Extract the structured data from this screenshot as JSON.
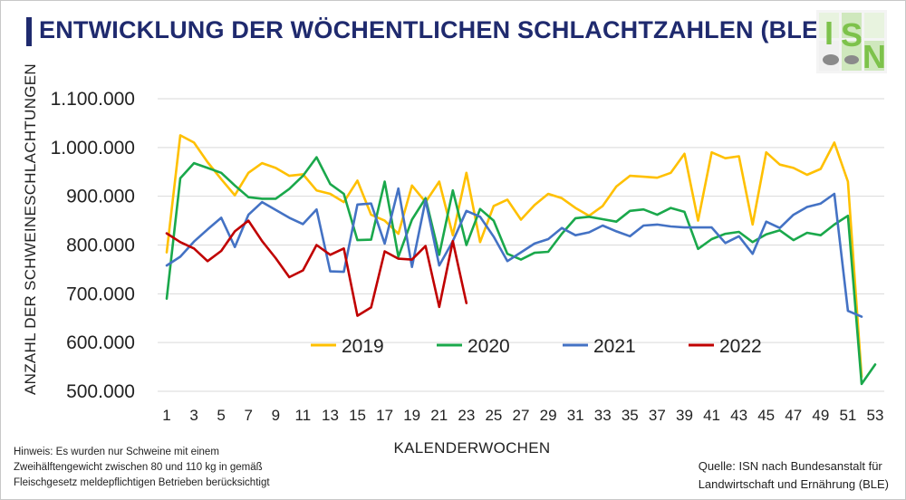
{
  "header": {
    "title": "ENTWICKLUNG DER WÖCHENTLICHEN SCHLACHTZAHLEN (BLE)",
    "title_color": "#1f2a6e",
    "logo_text": [
      "I",
      "S",
      "N"
    ],
    "logo_color": "#7dc24b"
  },
  "footer": {
    "note_lines": [
      "Hinweis: Es wurden nur Schweine mit einem",
      "Zweihälftengewicht zwischen 80 und 110 kg  in gemäß",
      "Fleischgesetz meldepflichtigen Betrieben berücksichtigt"
    ],
    "source_lines": [
      "Quelle: ISN nach Bundesanstalt für",
      "Landwirtschaft und Ernährung (BLE)"
    ]
  },
  "chart_data": {
    "type": "line",
    "xlabel": "KALENDERWOCHEN",
    "ylabel": "ANZAHL DER SCHWEINESCHLACHTUNGEN",
    "xlim": [
      1,
      53
    ],
    "ylim": [
      500000,
      1100000
    ],
    "x_ticks": [
      1,
      3,
      5,
      7,
      9,
      11,
      13,
      15,
      17,
      19,
      21,
      23,
      25,
      27,
      29,
      31,
      33,
      35,
      37,
      39,
      41,
      43,
      45,
      47,
      49,
      51,
      53
    ],
    "y_ticks": [
      500000,
      600000,
      700000,
      800000,
      900000,
      1000000,
      1100000
    ],
    "y_tick_labels": [
      "500.000",
      "600.000",
      "700.000",
      "800.000",
      "900.000",
      "1.000.000",
      "1.100.000"
    ],
    "grid": "horizontal",
    "legend_position": "bottom-center",
    "series": [
      {
        "name": "2019",
        "color": "#ffc000",
        "values": [
          785000,
          1025000,
          1010000,
          970000,
          935000,
          902000,
          948000,
          968000,
          958000,
          942000,
          945000,
          912000,
          905000,
          888000,
          932000,
          862000,
          850000,
          823000,
          922000,
          888000,
          930000,
          820000,
          948000,
          806000,
          880000,
          893000,
          852000,
          882000,
          905000,
          896000,
          876000,
          860000,
          880000,
          920000,
          942000,
          940000,
          938000,
          948000,
          987000,
          850000,
          990000,
          978000,
          982000,
          842000,
          990000,
          965000,
          958000,
          944000,
          956000,
          1010000,
          930000,
          530000
        ]
      },
      {
        "name": "2020",
        "color": "#1aa84b",
        "values": [
          690000,
          937000,
          968000,
          958000,
          948000,
          922000,
          898000,
          895000,
          895000,
          915000,
          942000,
          980000,
          925000,
          905000,
          810000,
          811000,
          930000,
          776000,
          852000,
          896000,
          780000,
          912000,
          800000,
          874000,
          850000,
          782000,
          770000,
          784000,
          786000,
          823000,
          855000,
          858000,
          853000,
          848000,
          870000,
          873000,
          862000,
          876000,
          868000,
          792000,
          812000,
          823000,
          827000,
          806000,
          822000,
          830000,
          810000,
          825000,
          820000,
          842000,
          860000,
          515000,
          555000
        ]
      },
      {
        "name": "2021",
        "color": "#4472c4",
        "values": [
          758000,
          776000,
          807000,
          832000,
          856000,
          796000,
          862000,
          888000,
          872000,
          856000,
          843000,
          873000,
          746000,
          745000,
          883000,
          885000,
          803000,
          916000,
          755000,
          892000,
          758000,
          808000,
          870000,
          858000,
          817000,
          767000,
          785000,
          803000,
          812000,
          835000,
          820000,
          826000,
          840000,
          828000,
          818000,
          840000,
          842000,
          838000,
          836000,
          836000,
          836000,
          804000,
          818000,
          782000,
          848000,
          835000,
          862000,
          878000,
          885000,
          905000,
          665000,
          653000
        ]
      },
      {
        "name": "2022",
        "color": "#c00000",
        "values": [
          824000,
          806000,
          793000,
          767000,
          788000,
          828000,
          850000,
          808000,
          773000,
          734000,
          748000,
          800000,
          780000,
          793000,
          655000,
          672000,
          787000,
          772000,
          770000,
          798000,
          673000,
          808000,
          681000
        ]
      }
    ]
  }
}
